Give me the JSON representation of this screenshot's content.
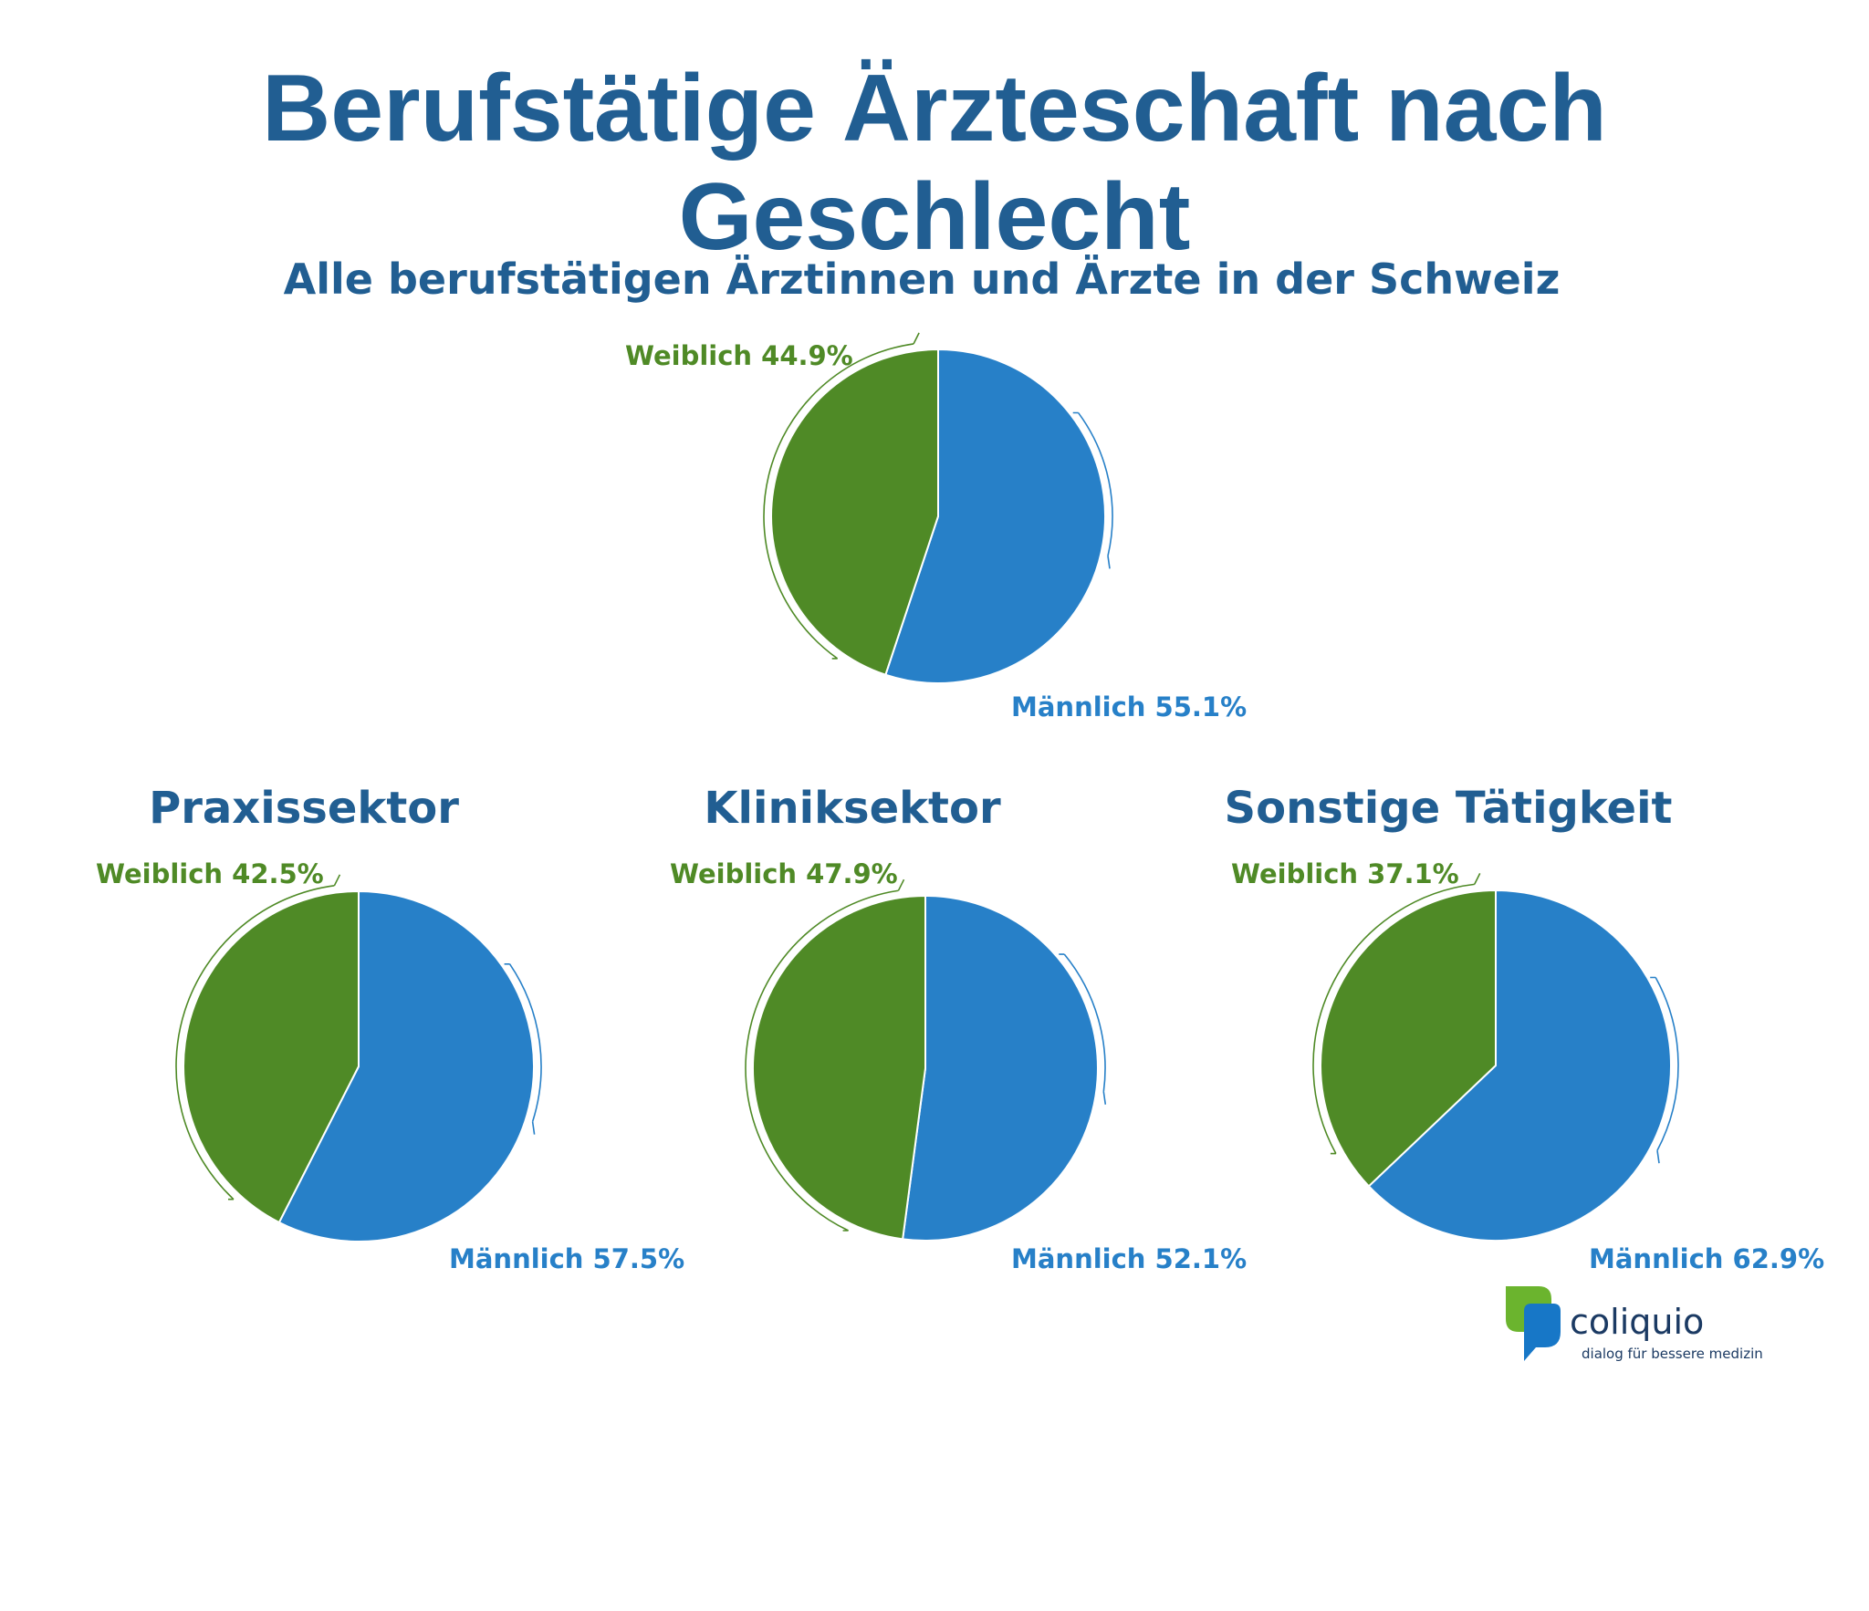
{
  "title": "Berufstätige Ärzteschaft nach Geschlecht",
  "colors": {
    "weiblich": "#4f8a26",
    "maennlich": "#2780c8",
    "title": "#215e92"
  },
  "chart_data": [
    {
      "type": "pie",
      "title": "Alle berufstätigen Ärztinnen und Ärzte in der Schweiz",
      "slices": [
        {
          "label": "Weiblich",
          "value": 44.9,
          "display": "Weiblich 44.9%"
        },
        {
          "label": "Männlich",
          "value": 55.1,
          "display": "Männlich 55.1%"
        }
      ]
    },
    {
      "type": "pie",
      "title": "Praxissektor",
      "slices": [
        {
          "label": "Weiblich",
          "value": 42.5,
          "display": "Weiblich 42.5%"
        },
        {
          "label": "Männlich",
          "value": 57.5,
          "display": "Männlich 57.5%"
        }
      ]
    },
    {
      "type": "pie",
      "title": "Kliniksektor",
      "slices": [
        {
          "label": "Weiblich",
          "value": 47.9,
          "display": "Weiblich 47.9%"
        },
        {
          "label": "Männlich",
          "value": 52.1,
          "display": "Männlich 52.1%"
        }
      ]
    },
    {
      "type": "pie",
      "title": "Sonstige Tätigkeit",
      "slices": [
        {
          "label": "Weiblich",
          "value": 37.1,
          "display": "Weiblich 37.1%"
        },
        {
          "label": "Männlich",
          "value": 62.9,
          "display": "Männlich 62.9%"
        }
      ]
    }
  ],
  "logo": {
    "name": "coliquio",
    "tagline": "dialog für bessere medizin"
  }
}
